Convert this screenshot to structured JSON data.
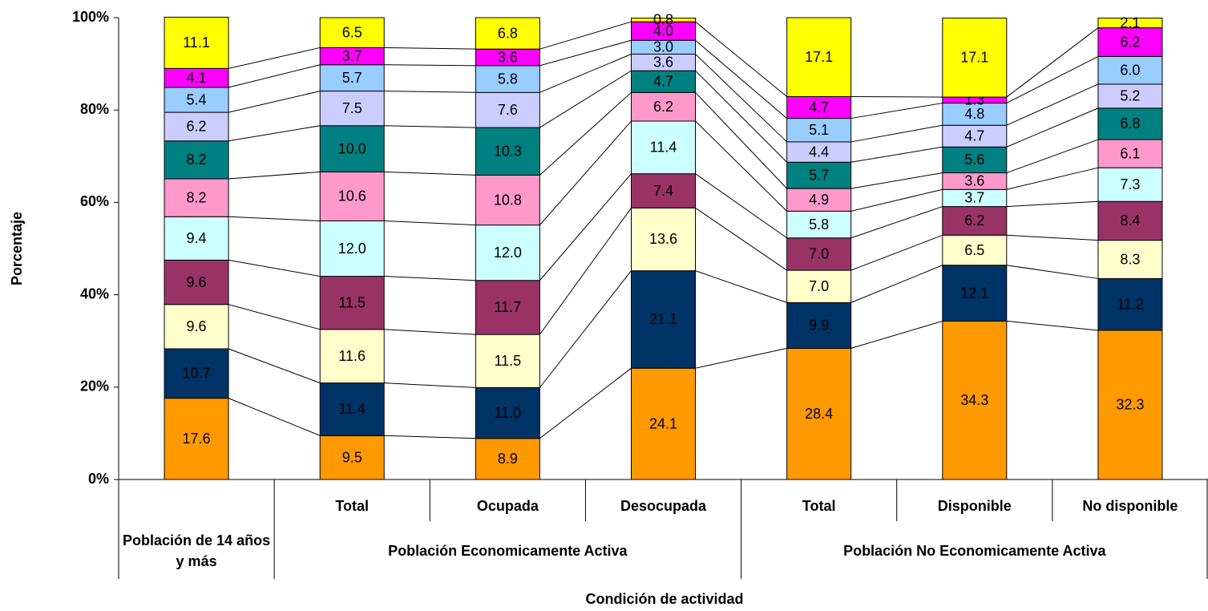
{
  "chart_data": {
    "type": "stacked_bar_100",
    "y_label": "Porcentaje",
    "x_label": "Condición de actividad",
    "groups": [
      {
        "label": "Población de 14 años y más",
        "categories": [
          null
        ]
      },
      {
        "label": "Población Economicamente Activa",
        "categories": [
          "Total",
          "Ocupada",
          "Desocupada"
        ]
      },
      {
        "label": "Población No Economicamente Activa",
        "categories": [
          "Total",
          "Disponible",
          "No disponible"
        ]
      }
    ],
    "ylim": [
      0,
      100
    ],
    "yticks": [
      {
        "value": 0,
        "label": "0%"
      },
      {
        "value": 20,
        "label": "20%"
      },
      {
        "value": 40,
        "label": "40%"
      },
      {
        "value": 60,
        "label": "60%"
      },
      {
        "value": 80,
        "label": "80%"
      },
      {
        "value": 100,
        "label": "100%"
      }
    ],
    "series": [
      {
        "color": "#FF9900",
        "values": [
          17.6,
          9.5,
          8.9,
          24.1,
          28.4,
          34.3,
          32.3
        ],
        "value_labels": [
          "17.6",
          "9.5",
          "8.9",
          "24.1",
          "28.4",
          "34.3",
          "32.3"
        ]
      },
      {
        "color": "#003366",
        "values": [
          10.7,
          11.4,
          11.0,
          21.1,
          9.9,
          12.1,
          11.2
        ],
        "value_labels": [
          "10.7",
          "11.4",
          "11.0",
          "21.1",
          "9.9",
          "12.1",
          "11.2"
        ]
      },
      {
        "color": "#FFFFCC",
        "values": [
          9.6,
          11.6,
          11.5,
          13.6,
          7.0,
          6.5,
          8.3
        ],
        "value_labels": [
          "9.6",
          "11.6",
          "11.5",
          "13.6",
          "7.0",
          "6.5",
          "8.3"
        ]
      },
      {
        "color": "#993366",
        "values": [
          9.6,
          11.5,
          11.7,
          7.4,
          7.0,
          6.2,
          8.4
        ],
        "value_labels": [
          "9.6",
          "11.5",
          "11.7",
          "7.4",
          "7.0",
          "6.2",
          "8.4"
        ]
      },
      {
        "color": "#CCFFFF",
        "values": [
          9.4,
          12.0,
          12.0,
          11.4,
          5.8,
          3.7,
          7.3
        ],
        "value_labels": [
          "9.4",
          "12.0",
          "12.0",
          "11.4",
          "5.8",
          "3.7",
          "7.3"
        ]
      },
      {
        "color": "#FF99CC",
        "values": [
          8.2,
          10.6,
          10.8,
          6.2,
          4.9,
          3.6,
          6.1
        ],
        "value_labels": [
          "8.2",
          "10.6",
          "10.8",
          "6.2",
          "4.9",
          "3.6",
          "6.1"
        ]
      },
      {
        "color": "#008080",
        "values": [
          8.2,
          10.0,
          10.3,
          4.7,
          5.7,
          5.6,
          6.8
        ],
        "value_labels": [
          "8.2",
          "10.0",
          "10.3",
          "4.7",
          "5.7",
          "5.6",
          "6.8"
        ]
      },
      {
        "color": "#CCCCFF",
        "values": [
          6.2,
          7.5,
          7.6,
          3.6,
          4.4,
          4.7,
          5.2
        ],
        "value_labels": [
          "6.2",
          "7.5",
          "7.6",
          "3.6",
          "4.4",
          "4.7",
          "5.2"
        ]
      },
      {
        "color": "#99CCFF",
        "values": [
          5.4,
          5.7,
          5.8,
          3.0,
          5.1,
          4.8,
          6.0
        ],
        "value_labels": [
          "5.4",
          "5.7",
          "5.8",
          "3.0",
          "5.1",
          "4.8",
          "6.0"
        ]
      },
      {
        "color": "#FF00FF",
        "values": [
          4.1,
          3.7,
          3.6,
          4.0,
          4.7,
          1.3,
          6.2
        ],
        "value_labels": [
          "4.1",
          "3.7",
          "3.6",
          "4.0",
          "4.7",
          "1.3",
          "6.2"
        ]
      },
      {
        "color": "#FFFF00",
        "values": [
          11.1,
          6.5,
          6.8,
          0.8,
          17.1,
          17.1,
          2.1
        ],
        "value_labels": [
          "11.1",
          "6.5",
          "6.8",
          "0.8",
          "17.1",
          "17.1",
          "2.1"
        ]
      }
    ]
  }
}
